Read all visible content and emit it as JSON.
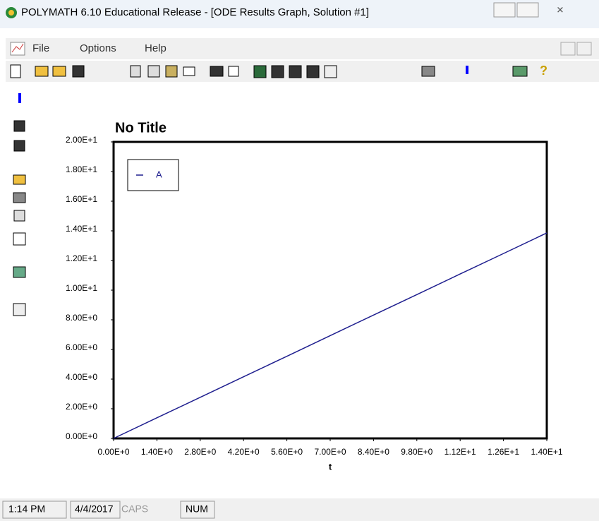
{
  "window": {
    "title": "POLYMATH 6.10 Educational Release - [ODE Results Graph, Solution #1]"
  },
  "menu": [
    "File",
    "Options",
    "Help"
  ],
  "status_bar": {
    "time": "1:14 PM",
    "date": "4/4/2017",
    "caps": "CAPS",
    "num": "NUM"
  },
  "chart_data": {
    "type": "line",
    "title": "No Title",
    "x_label": "t",
    "x": [
      0,
      1.4,
      2.8,
      4.2,
      5.6,
      7.0,
      8.4,
      9.8,
      11.2,
      12.6,
      14.0
    ],
    "series": [
      {
        "name": "A",
        "color": "#1f1f8f",
        "values": [
          0,
          1.39,
          2.77,
          4.16,
          5.54,
          6.93,
          8.32,
          9.7,
          11.09,
          12.47,
          13.86
        ]
      }
    ],
    "xlim": [
      0,
      14
    ],
    "ylim": [
      0,
      20
    ],
    "xticks": [
      {
        "value": 0,
        "label": "0.00E+0"
      },
      {
        "value": 1.4,
        "label": "1.40E+0"
      },
      {
        "value": 2.8,
        "label": "2.80E+0"
      },
      {
        "value": 4.2,
        "label": "4.20E+0"
      },
      {
        "value": 5.6,
        "label": "5.60E+0"
      },
      {
        "value": 7.0,
        "label": "7.00E+0"
      },
      {
        "value": 8.4,
        "label": "8.40E+0"
      },
      {
        "value": 9.8,
        "label": "9.80E+0"
      },
      {
        "value": 11.2,
        "label": "1.12E+1"
      },
      {
        "value": 12.6,
        "label": "1.26E+1"
      },
      {
        "value": 14.0,
        "label": "1.40E+1"
      }
    ],
    "yticks": [
      {
        "value": 0,
        "label": "0.00E+0"
      },
      {
        "value": 2,
        "label": "2.00E+0"
      },
      {
        "value": 4,
        "label": "4.00E+0"
      },
      {
        "value": 6,
        "label": "6.00E+0"
      },
      {
        "value": 8,
        "label": "8.00E+0"
      },
      {
        "value": 10,
        "label": "1.00E+1"
      },
      {
        "value": 12,
        "label": "1.20E+1"
      },
      {
        "value": 14,
        "label": "1.40E+1"
      },
      {
        "value": 16,
        "label": "1.60E+1"
      },
      {
        "value": 18,
        "label": "1.80E+1"
      },
      {
        "value": 20,
        "label": "2.00E+1"
      }
    ],
    "grid": false,
    "legend": "upper left"
  }
}
